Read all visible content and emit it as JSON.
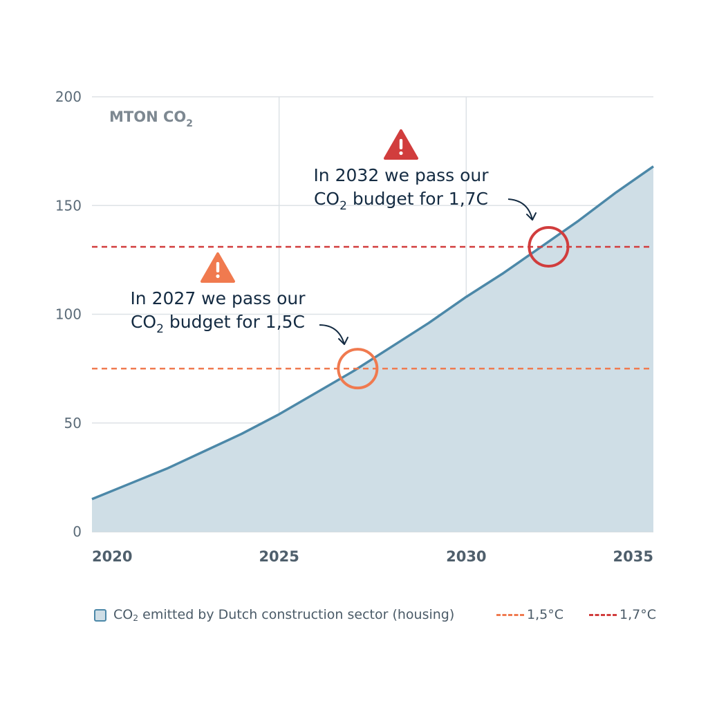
{
  "chart_data": {
    "type": "area",
    "unit_label": {
      "main": "MTON CO",
      "sub": "2"
    },
    "x_ticks": [
      "2020",
      "2025",
      "2030",
      "2035"
    ],
    "y_ticks": [
      "0",
      "50",
      "100",
      "150",
      "200"
    ],
    "xlim": [
      2020,
      2035
    ],
    "ylim": [
      0,
      200
    ],
    "grid": true,
    "series": [
      {
        "name": "CO2 emitted by Dutch construction sector (housing)",
        "color": "#4c88a8",
        "fill": "#cfdee6",
        "x": [
          2020,
          2021,
          2022,
          2023,
          2024,
          2025,
          2026,
          2027,
          2028,
          2029,
          2030,
          2031,
          2032,
          2033,
          2034,
          2035
        ],
        "y": [
          15,
          22,
          29,
          37,
          45,
          54,
          64,
          74,
          85,
          96,
          108,
          119,
          131,
          143,
          156,
          168
        ]
      }
    ],
    "thresholds": [
      {
        "value": 75,
        "color": "#f07a4f"
      },
      {
        "value": 131,
        "color": "#d13d3d"
      }
    ],
    "annotations": [
      {
        "line1": "In 2027 we pass our",
        "line2_pre": "CO",
        "line2_sub": "2",
        "line2_post": " budget for 1,5C",
        "color": "#f07a4f",
        "x": 2027.1,
        "y": 75
      },
      {
        "line1": "In 2032 we pass our",
        "line2_pre": "CO",
        "line2_sub": "2",
        "line2_post": " budget for 1,7C",
        "color": "#d13d3d",
        "x": 2032.2,
        "y": 131
      }
    ],
    "legend": {
      "position": "bottom",
      "area_label_pre": "CO",
      "area_label_sub": "2",
      "area_label_post": " emitted by Dutch construction sector (housing)",
      "line1_label": "1,5°C",
      "line2_label": "1,7°C"
    }
  }
}
